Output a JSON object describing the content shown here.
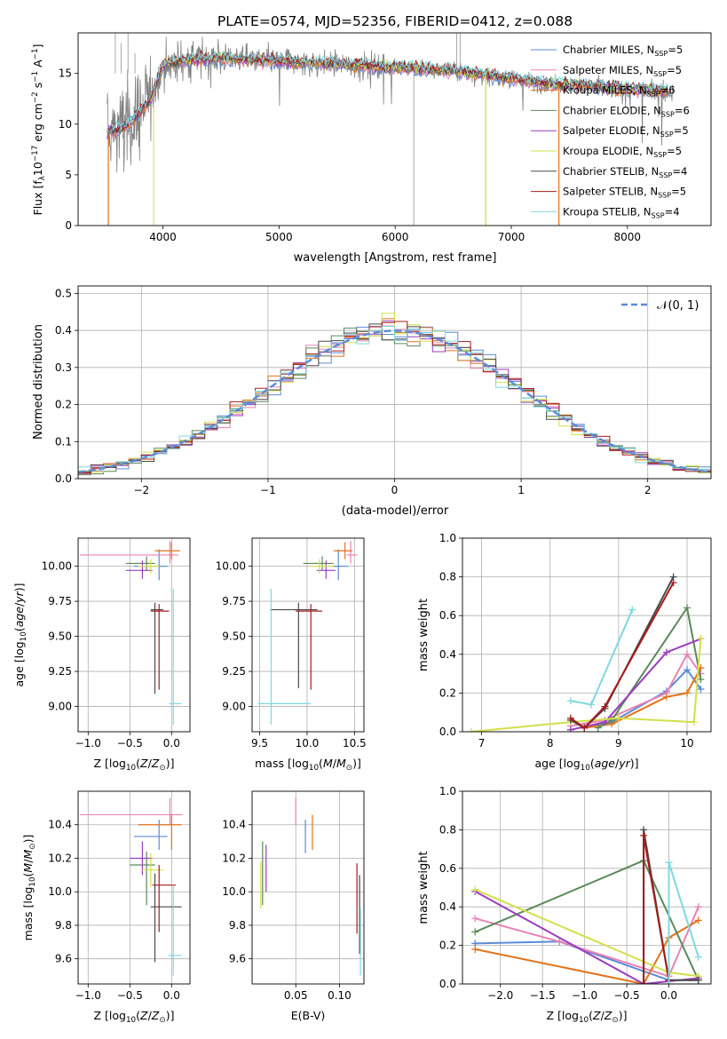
{
  "title": "PLATE=0574, MJD=52356, FIBERID=0412, z=0.088",
  "colors": {
    "chabrier_miles": "#5b8bd6",
    "salpeter_miles": "#e882b4",
    "kroupa_miles": "#e0741c",
    "chabrier_elodie": "#5a8a5a",
    "salpeter_elodie": "#9a3dbf",
    "kroupa_elodie": "#d2e04a",
    "chabrier_stelib": "#4a4a4a",
    "salpeter_stelib": "#a51c1c",
    "kroupa_stelib": "#7fd8e0",
    "data": "#808080",
    "normal": "#5b8bd6",
    "grid": "#b0b0b0"
  },
  "chart_data": [
    {
      "id": "spectrum",
      "type": "line",
      "xlabel": "wavelength [Angstrom, rest frame]",
      "ylabel": "Flux [f_λ10^-17 erg cm^-2 s^-1 A^-1]",
      "xlim": [
        3270,
        8720
      ],
      "ylim": [
        0,
        19
      ],
      "xticks": [
        "4000",
        "5000",
        "6000",
        "7000",
        "8000"
      ],
      "yticks": [
        "0",
        "5",
        "10",
        "15"
      ],
      "legend_location": "right",
      "legend": [
        {
          "model": "Chabrier MILES",
          "n": "5"
        },
        {
          "model": "Salpeter MILES",
          "n": "5"
        },
        {
          "model": "Kroupa MILES",
          "n": "6"
        },
        {
          "model": "Chabrier ELODIE",
          "n": "6"
        },
        {
          "model": "Salpeter ELODIE",
          "n": "5"
        },
        {
          "model": "Kroupa ELODIE",
          "n": "5"
        },
        {
          "model": "Chabrier STELIB",
          "n": "4"
        },
        {
          "model": "Salpeter STELIB",
          "n": "5"
        },
        {
          "model": "Kroupa STELIB",
          "n": "4"
        }
      ],
      "continuum": {
        "x": [
          3520,
          3700,
          3900,
          4000,
          4200,
          4500,
          5000,
          5500,
          6000,
          6500,
          7000,
          7300,
          7600,
          8000,
          8400
        ],
        "y": [
          9.2,
          9.8,
          12.5,
          15.8,
          16.3,
          16.5,
          16.2,
          15.9,
          15.6,
          15.3,
          14.5,
          14.0,
          13.8,
          13.5,
          13.2
        ]
      }
    },
    {
      "id": "residuals",
      "type": "histogram",
      "xlabel": "(data-model)/error",
      "ylabel": "Normed distribution",
      "xlim": [
        -2.5,
        2.5
      ],
      "ylim": [
        0,
        0.52
      ],
      "xticks": [
        "−2",
        "−1",
        "0",
        "1",
        "2"
      ],
      "yticks": [
        "0.0",
        "0.1",
        "0.2",
        "0.3",
        "0.4",
        "0.5"
      ],
      "legend": "𝒩(0, 1)",
      "bin_width": 0.1
    },
    {
      "id": "age_vs_Z",
      "type": "errorbar",
      "xlabel": "Z [log10(Z/Z⊙)]",
      "ylabel": "age [log10(age/yr)]",
      "xlim": [
        -1.12,
        0.22
      ],
      "ylim": [
        8.82,
        10.2
      ],
      "xticks": [
        [
          "−1.0",
          -1.0
        ],
        [
          "−0.5",
          -0.5
        ],
        [
          "0.0",
          0.0
        ]
      ],
      "yticks": [
        [
          "9.00",
          9.0
        ],
        [
          "9.25",
          9.25
        ],
        [
          "9.50",
          9.5
        ],
        [
          "9.75",
          9.75
        ],
        [
          "10.00",
          10.0
        ]
      ],
      "points": [
        {
          "c": "chabrier_miles",
          "x": -0.15,
          "xe": [
            0.3,
            0.1
          ],
          "y": 10.0,
          "ye": [
            0.1,
            0.12
          ]
        },
        {
          "c": "salpeter_miles",
          "x": -0.02,
          "xe": [
            1.08,
            0.1
          ],
          "y": 10.08,
          "ye": [
            0.06,
            0.1
          ]
        },
        {
          "c": "kroupa_miles",
          "x": 0.0,
          "xe": [
            0.2,
            0.1
          ],
          "y": 10.11,
          "ye": [
            0.06,
            0.06
          ]
        },
        {
          "c": "chabrier_elodie",
          "x": -0.3,
          "xe": [
            0.25,
            0.1
          ],
          "y": 10.02,
          "ye": [
            0.05,
            0.05
          ]
        },
        {
          "c": "salpeter_elodie",
          "x": -0.35,
          "xe": [
            0.2,
            0.12
          ],
          "y": 9.97,
          "ye": [
            0.06,
            0.07
          ]
        },
        {
          "c": "kroupa_elodie",
          "x": -0.25,
          "xe": [
            0.15,
            0.1
          ],
          "y": 10.0,
          "ye": [
            0.05,
            0.05
          ]
        },
        {
          "c": "chabrier_stelib",
          "x": -0.2,
          "xe": [
            0.05,
            0.1
          ],
          "y": 9.69,
          "ye": [
            0.6,
            0.05
          ]
        },
        {
          "c": "salpeter_stelib",
          "x": -0.15,
          "xe": [
            0.1,
            0.12
          ],
          "y": 9.68,
          "ye": [
            0.56,
            0.05
          ]
        },
        {
          "c": "kroupa_stelib",
          "x": 0.02,
          "xe": [
            0.05,
            0.1
          ],
          "y": 9.02,
          "ye": [
            0.15,
            0.82
          ]
        }
      ]
    },
    {
      "id": "age_vs_mass",
      "type": "errorbar",
      "xlabel": "mass [log10(M/M⊙)]",
      "ylabel": "",
      "xlim": [
        9.42,
        10.6
      ],
      "ylim": [
        8.82,
        10.2
      ],
      "xticks": [
        [
          "9.5",
          9.5
        ],
        [
          "10.0",
          10.0
        ],
        [
          "10.5",
          10.5
        ]
      ],
      "yticks": [
        [
          "9.00",
          9.0
        ],
        [
          "9.25",
          9.25
        ],
        [
          "9.50",
          9.5
        ],
        [
          "9.75",
          9.75
        ],
        [
          "10.00",
          10.0
        ]
      ],
      "points": [
        {
          "c": "chabrier_miles",
          "x": 10.33,
          "xe": [
            0.08,
            0.1
          ],
          "y": 10.0,
          "ye": [
            0.1,
            0.12
          ]
        },
        {
          "c": "salpeter_miles",
          "x": 10.46,
          "xe": [
            0.04,
            0.07
          ],
          "y": 10.08,
          "ye": [
            0.06,
            0.1
          ]
        },
        {
          "c": "kroupa_miles",
          "x": 10.4,
          "xe": [
            0.12,
            0.08
          ],
          "y": 10.11,
          "ye": [
            0.06,
            0.06
          ]
        },
        {
          "c": "chabrier_elodie",
          "x": 10.16,
          "xe": [
            0.2,
            0.12
          ],
          "y": 10.02,
          "ye": [
            0.05,
            0.05
          ]
        },
        {
          "c": "salpeter_elodie",
          "x": 10.2,
          "xe": [
            0.1,
            0.1
          ],
          "y": 9.97,
          "ye": [
            0.06,
            0.07
          ]
        },
        {
          "c": "kroupa_elodie",
          "x": 10.13,
          "xe": [
            0.1,
            0.15
          ],
          "y": 10.0,
          "ye": [
            0.05,
            0.05
          ]
        },
        {
          "c": "chabrier_stelib",
          "x": 9.91,
          "xe": [
            0.3,
            0.2
          ],
          "y": 9.69,
          "ye": [
            0.56,
            0.05
          ]
        },
        {
          "c": "salpeter_stelib",
          "x": 10.04,
          "xe": [
            0.16,
            0.12
          ],
          "y": 9.68,
          "ye": [
            0.56,
            0.05
          ]
        },
        {
          "c": "kroupa_stelib",
          "x": 9.62,
          "xe": [
            0.14,
            0.42
          ],
          "y": 9.02,
          "ye": [
            0.15,
            0.82
          ]
        }
      ]
    },
    {
      "id": "weight_vs_age",
      "type": "line",
      "xlabel": "age [log10(age/yr)]",
      "ylabel": "mass weight",
      "xlim": [
        6.72,
        10.35
      ],
      "ylim": [
        0,
        1
      ],
      "xticks": [
        [
          "7",
          7
        ],
        [
          "8",
          8
        ],
        [
          "9",
          9
        ],
        [
          "10",
          10
        ]
      ],
      "yticks": [
        [
          "0.0",
          0
        ],
        [
          "0.2",
          0.2
        ],
        [
          "0.4",
          0.4
        ],
        [
          "0.6",
          0.6
        ],
        [
          "0.8",
          0.8
        ],
        [
          "1.0",
          1.0
        ]
      ],
      "series": [
        {
          "c": "chabrier_miles",
          "x": [
            8.5,
            8.9,
            9.7,
            10.0,
            10.2
          ],
          "y": [
            0.02,
            0.05,
            0.21,
            0.32,
            0.22
          ]
        },
        {
          "c": "salpeter_miles",
          "x": [
            8.3,
            8.8,
            9.7,
            10.0,
            10.2
          ],
          "y": [
            0.03,
            0.06,
            0.2,
            0.4,
            0.3
          ]
        },
        {
          "c": "kroupa_miles",
          "x": [
            8.5,
            8.9,
            9.7,
            10.0,
            10.2
          ],
          "y": [
            0.02,
            0.04,
            0.18,
            0.2,
            0.33
          ]
        },
        {
          "c": "chabrier_elodie",
          "x": [
            8.7,
            8.9,
            10.0,
            10.2
          ],
          "y": [
            0.02,
            0.06,
            0.64,
            0.27
          ]
        },
        {
          "c": "salpeter_elodie",
          "x": [
            8.3,
            8.8,
            9.7,
            10.2
          ],
          "y": [
            0.01,
            0.05,
            0.41,
            0.48
          ]
        },
        {
          "c": "kroupa_elodie",
          "x": [
            6.85,
            8.3,
            9.0,
            10.1,
            10.2
          ],
          "y": [
            0.0,
            0.05,
            0.07,
            0.05,
            0.48
          ]
        },
        {
          "c": "chabrier_stelib",
          "x": [
            8.3,
            8.5,
            8.8,
            9.8
          ],
          "y": [
            0.06,
            0.02,
            0.12,
            0.8
          ]
        },
        {
          "c": "salpeter_stelib",
          "x": [
            8.3,
            8.5,
            8.8,
            9.8
          ],
          "y": [
            0.07,
            0.02,
            0.13,
            0.77
          ]
        },
        {
          "c": "kroupa_stelib",
          "x": [
            8.3,
            8.6,
            9.2
          ],
          "y": [
            0.16,
            0.14,
            0.63
          ]
        }
      ]
    },
    {
      "id": "mass_vs_Z",
      "type": "errorbar",
      "xlabel": "Z [log10(Z/Z⊙)]",
      "ylabel": "mass [log10(M/M⊙)]",
      "xlim": [
        -1.12,
        0.22
      ],
      "ylim": [
        9.45,
        10.6
      ],
      "xticks": [
        [
          "−1.0",
          -1.0
        ],
        [
          "−0.5",
          -0.5
        ],
        [
          "0.0",
          0.0
        ]
      ],
      "yticks": [
        [
          "9.6",
          9.6
        ],
        [
          "9.8",
          9.8
        ],
        [
          "10.0",
          10.0
        ],
        [
          "10.2",
          10.2
        ],
        [
          "10.4",
          10.4
        ]
      ],
      "points": [
        {
          "c": "chabrier_miles",
          "x": -0.15,
          "xe": [
            0.3,
            0.1
          ],
          "y": 10.33,
          "ye": [
            0.08,
            0.1
          ]
        },
        {
          "c": "salpeter_miles",
          "x": -0.02,
          "xe": [
            1.08,
            0.15
          ],
          "y": 10.46,
          "ye": [
            0.06,
            0.1
          ]
        },
        {
          "c": "kroupa_miles",
          "x": 0.0,
          "xe": [
            0.4,
            0.12
          ],
          "y": 10.4,
          "ye": [
            0.15,
            0.06
          ]
        },
        {
          "c": "chabrier_elodie",
          "x": -0.3,
          "xe": [
            0.2,
            0.1
          ],
          "y": 10.16,
          "ye": [
            0.24,
            0.08
          ]
        },
        {
          "c": "salpeter_elodie",
          "x": -0.35,
          "xe": [
            0.15,
            0.12
          ],
          "y": 10.2,
          "ye": [
            0.1,
            0.1
          ]
        },
        {
          "c": "kroupa_elodie",
          "x": -0.25,
          "xe": [
            0.12,
            0.15
          ],
          "y": 10.13,
          "ye": [
            0.1,
            0.1
          ]
        },
        {
          "c": "chabrier_stelib",
          "x": -0.2,
          "xe": [
            0.05,
            0.32
          ],
          "y": 9.91,
          "ye": [
            0.33,
            0.2
          ]
        },
        {
          "c": "salpeter_stelib",
          "x": -0.15,
          "xe": [
            0.08,
            0.2
          ],
          "y": 10.04,
          "ye": [
            0.28,
            0.12
          ]
        },
        {
          "c": "kroupa_stelib",
          "x": 0.02,
          "xe": [
            0.06,
            0.1
          ],
          "y": 9.62,
          "ye": [
            0.12,
            0.42
          ]
        }
      ]
    },
    {
      "id": "mass_vs_EBV",
      "type": "errorbar",
      "xlabel": "E(B-V)",
      "ylabel": "",
      "xlim": [
        0.0,
        0.128
      ],
      "ylim": [
        9.45,
        10.6
      ],
      "xticks": [
        [
          "0.05",
          0.05
        ],
        [
          "0.10",
          0.1
        ]
      ],
      "yticks": [
        [
          "9.6",
          9.6
        ],
        [
          "9.8",
          9.8
        ],
        [
          "10.0",
          10.0
        ],
        [
          "10.2",
          10.2
        ],
        [
          "10.4",
          10.4
        ]
      ],
      "points": [
        {
          "c": "chabrier_miles",
          "x": 0.061,
          "xe": [
            0,
            0
          ],
          "y": 10.33,
          "ye": [
            0.1,
            0.1
          ]
        },
        {
          "c": "salpeter_miles",
          "x": 0.05,
          "xe": [
            0,
            0
          ],
          "y": 10.46,
          "ye": [
            0.06,
            0.1
          ]
        },
        {
          "c": "kroupa_miles",
          "x": 0.069,
          "xe": [
            0,
            0
          ],
          "y": 10.4,
          "ye": [
            0.15,
            0.06
          ]
        },
        {
          "c": "chabrier_elodie",
          "x": 0.012,
          "xe": [
            0,
            0
          ],
          "y": 10.16,
          "ye": [
            0.24,
            0.14
          ]
        },
        {
          "c": "salpeter_elodie",
          "x": 0.016,
          "xe": [
            0,
            0
          ],
          "y": 10.13,
          "ye": [
            0.13,
            0.15
          ]
        },
        {
          "c": "kroupa_elodie",
          "x": 0.01,
          "xe": [
            0,
            0
          ],
          "y": 10.0,
          "ye": [
            0.1,
            0.18
          ]
        },
        {
          "c": "chabrier_stelib",
          "x": 0.123,
          "xe": [
            0,
            0
          ],
          "y": 9.91,
          "ye": [
            0.28,
            0.19
          ]
        },
        {
          "c": "salpeter_stelib",
          "x": 0.12,
          "xe": [
            0,
            0
          ],
          "y": 9.96,
          "ye": [
            0.21,
            0.21
          ]
        },
        {
          "c": "kroupa_stelib",
          "x": 0.124,
          "xe": [
            0,
            0
          ],
          "y": 9.7,
          "ye": [
            0.2,
            0.2
          ]
        }
      ]
    },
    {
      "id": "weight_vs_Z",
      "type": "line",
      "xlabel": "Z [log10(Z/Z⊙)]",
      "ylabel": "mass weight",
      "xlim": [
        -2.45,
        0.5
      ],
      "ylim": [
        0,
        1
      ],
      "xticks": [
        [
          "−2.0",
          -2.0
        ],
        [
          "−1.5",
          -1.5
        ],
        [
          "−1.0",
          -1.0
        ],
        [
          "−0.5",
          -0.5
        ],
        [
          "0.0",
          0.0
        ]
      ],
      "yticks": [
        [
          "0.0",
          0
        ],
        [
          "0.2",
          0.2
        ],
        [
          "0.4",
          0.4
        ],
        [
          "0.6",
          0.6
        ],
        [
          "0.8",
          0.8
        ],
        [
          "1.0",
          1.0
        ]
      ],
      "series": [
        {
          "c": "chabrier_miles",
          "x": [
            -2.3,
            -1.3,
            0.0,
            0.35
          ],
          "y": [
            0.21,
            0.22,
            0.02,
            0.02
          ]
        },
        {
          "c": "salpeter_miles",
          "x": [
            -2.3,
            -1.3,
            0.0,
            0.35
          ],
          "y": [
            0.34,
            0.22,
            0.04,
            0.4
          ]
        },
        {
          "c": "kroupa_miles",
          "x": [
            -2.3,
            -0.3,
            0.0,
            0.35
          ],
          "y": [
            0.18,
            0.0,
            0.24,
            0.33
          ]
        },
        {
          "c": "chabrier_elodie",
          "x": [
            -2.3,
            -0.3,
            0.35
          ],
          "y": [
            0.27,
            0.64,
            0.02
          ]
        },
        {
          "c": "salpeter_elodie",
          "x": [
            -2.3,
            -0.3,
            0.35
          ],
          "y": [
            0.48,
            0.0,
            0.03
          ]
        },
        {
          "c": "kroupa_elodie",
          "x": [
            -2.3,
            0.0,
            0.35
          ],
          "y": [
            0.49,
            0.06,
            0.04
          ]
        },
        {
          "c": "chabrier_stelib",
          "x": [
            -0.3,
            -0.3,
            0.0,
            0.35
          ],
          "y": [
            0.0,
            0.8,
            0.02,
            0.02
          ]
        },
        {
          "c": "salpeter_stelib",
          "x": [
            -0.3,
            -0.3,
            0.0
          ],
          "y": [
            0.0,
            0.77,
            0.02
          ]
        },
        {
          "c": "kroupa_stelib",
          "x": [
            0.0,
            0.0,
            0.35
          ],
          "y": [
            0.0,
            0.63,
            0.14
          ]
        }
      ]
    }
  ]
}
